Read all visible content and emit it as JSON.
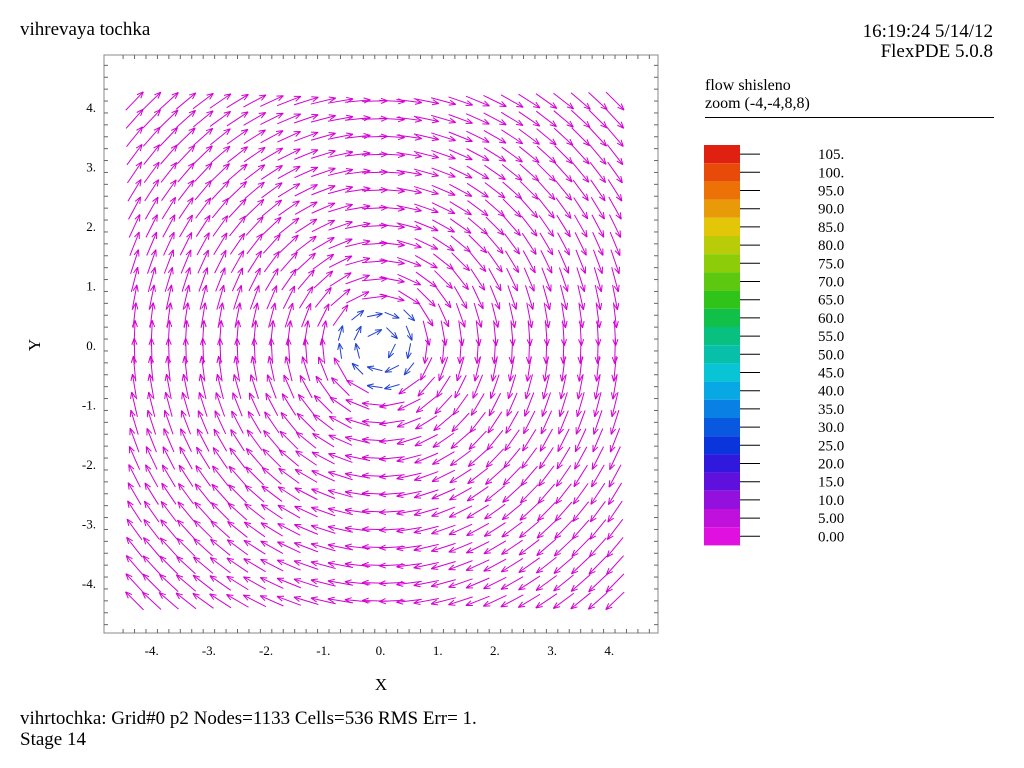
{
  "header": {
    "title": "vihrevaya tochka",
    "timestamp": "16:19:24 5/14/12",
    "version": "FlexPDE 5.0.8"
  },
  "legend_panel": {
    "plot_name": "flow  shisleno",
    "zoom": "zoom (-4,-4,8,8)",
    "scale": [
      {
        "label": "105.",
        "color": "#e02010"
      },
      {
        "label": "100.",
        "color": "#e84a0a"
      },
      {
        "label": "95.0",
        "color": "#ec7208"
      },
      {
        "label": "90.0",
        "color": "#e89a08"
      },
      {
        "label": "85.0",
        "color": "#e4c608"
      },
      {
        "label": "80.0",
        "color": "#b8cc08"
      },
      {
        "label": "75.0",
        "color": "#8ccc08"
      },
      {
        "label": "70.0",
        "color": "#5cc810"
      },
      {
        "label": "65.0",
        "color": "#30c418"
      },
      {
        "label": "60.0",
        "color": "#10c048"
      },
      {
        "label": "55.0",
        "color": "#08c080"
      },
      {
        "label": "50.0",
        "color": "#08c0aa"
      },
      {
        "label": "45.0",
        "color": "#08c4d4"
      },
      {
        "label": "40.0",
        "color": "#08a8e4"
      },
      {
        "label": "35.0",
        "color": "#0880e4"
      },
      {
        "label": "30.0",
        "color": "#0858e0"
      },
      {
        "label": "25.0",
        "color": "#0a34dc"
      },
      {
        "label": "20.0",
        "color": "#3018dc"
      },
      {
        "label": "15.0",
        "color": "#6010dc"
      },
      {
        "label": "10.0",
        "color": "#9410dc"
      },
      {
        "label": "5.00",
        "color": "#c010dc"
      },
      {
        "label": "0.00",
        "color": "#e010e0"
      }
    ]
  },
  "footer": {
    "line1": "vihrtochka:  Grid#0  p2  Nodes=1133 Cells=536 RMS Err= 1.",
    "line2": "Stage 14"
  },
  "chart_data": {
    "type": "vector-field",
    "xlabel": "X",
    "ylabel": "Y",
    "xlim": [
      -4.5,
      4.8
    ],
    "ylim": [
      -4.9,
      4.9
    ],
    "xticks": [
      "-4.",
      "-3.",
      "-2.",
      "-1.",
      "0.",
      "1.",
      "2.",
      "3.",
      "4."
    ],
    "yticks": [
      "4.",
      "3.",
      "2.",
      "1.",
      "0.",
      "-1.",
      "-2.",
      "-3.",
      "-4."
    ],
    "xtick_values": [
      -4,
      -3,
      -2,
      -1,
      0,
      1,
      2,
      3,
      4
    ],
    "ytick_values": [
      4,
      3,
      2,
      1,
      0,
      -1,
      -2,
      -3,
      -4
    ],
    "field": "vortex rotating clockwise about origin",
    "domain": [
      -4.3,
      4.3
    ],
    "grid_step": 0.3,
    "arrow_color": "#d400d4",
    "core_arrow_color": "#2040d0"
  }
}
